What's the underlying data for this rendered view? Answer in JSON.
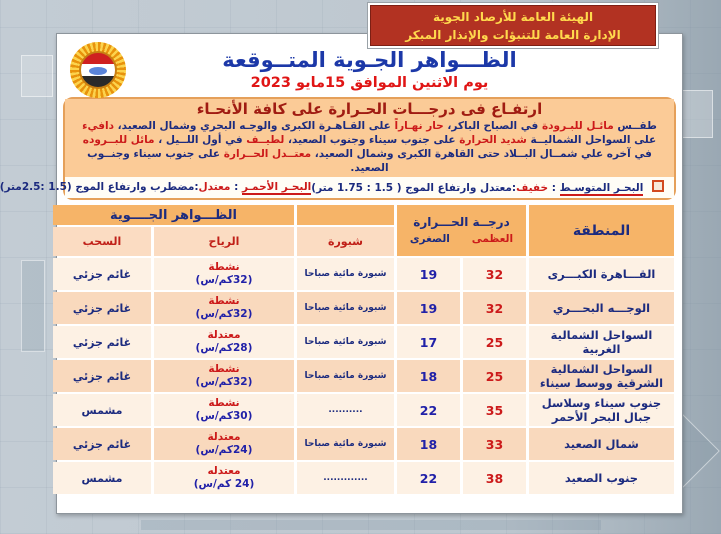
{
  "agency": {
    "line1": "الهيئة العامة للأرصاد الجوية",
    "line2": "الإدارة العامة للتنبؤات والإنذار المبكر"
  },
  "title": "الظـــواهر الجـوية المتــوقعة",
  "date_line": "يوم الاثنين الموافق 15مايو 2023",
  "banner": {
    "headline": "ارتفـاع فى درجـــات الحـرارة على كافة الأنحـاء",
    "paragraph": [
      {
        "text": "طقــس ",
        "red": false
      },
      {
        "text": "مائـل للبـرودة",
        "red": true
      },
      {
        "text": " في الصباح الباكر، ",
        "red": false
      },
      {
        "text": "حار نهـاراً",
        "red": true
      },
      {
        "text": " على القـاهـرة الكبرى والوجـه البحري وشمال الصعيد، ",
        "red": false
      },
      {
        "text": "دافيء",
        "red": true
      },
      {
        "text": " على السواحل الشماليــة ",
        "red": false
      },
      {
        "text": "شديد الحرارة",
        "red": true
      },
      {
        "text": " على جنوب سيناء وجنوب الصعيد، ",
        "red": false
      },
      {
        "text": "لطيــف",
        "red": true
      },
      {
        "text": " في أول اللــيل ، ",
        "red": false
      },
      {
        "text": "مائل للبــروده",
        "red": true
      },
      {
        "text": " في آخره علي شمــال البــلاد حتى القاهرة الكبرى وشمال الصعيد، ",
        "red": false
      },
      {
        "text": "معتــدل الحــرارة",
        "red": true
      },
      {
        "text": " على جنوب سيناء وجنــوب الصعيد.",
        "red": false
      }
    ]
  },
  "sea_line": {
    "med_name": "البحـر المتوسـط",
    "med_colon": " : ",
    "med_state": "خفيف",
    "med_rest": ":معتدل  وارتفاع الموج ( 1.5 : 1.75 متر)",
    "red_name": "البحـر الأحمـر",
    "red_colon": " : ",
    "red_state": "معتدل",
    "red_rest": ":مضطرب وارتفاع الموج (1.5 :2.5متر)"
  },
  "table": {
    "phenomena_header": "الظـــواهر الجــــوية",
    "temp_header": "درجــة الحـــرارة",
    "tmax_label": "العظمى",
    "tmin_label": "الصغرى",
    "region_label": "المنطقة",
    "fog_label": "شبورة",
    "wind_label": "الرياح",
    "clouds_label": "السحب",
    "rows": [
      {
        "region": "القـــاهرة الكبـــرى",
        "tmax": "32",
        "tmin": "19",
        "fog": "شبورة مائية صباحا",
        "wind_type": "نشطة",
        "wind_speed": "(32كم/س)",
        "clouds": "غائم جزئي"
      },
      {
        "region": "الوجـــه البحـــري",
        "tmax": "32",
        "tmin": "19",
        "fog": "شبورة مائية صباحا",
        "wind_type": "نشطة",
        "wind_speed": "(32كم/س)",
        "clouds": "غائم جزئي"
      },
      {
        "region": "السواحل الشمالية الغربية",
        "tmax": "25",
        "tmin": "17",
        "fog": "شبورة مائية صباحا",
        "wind_type": "معتدلة",
        "wind_speed": "(28كم/س)",
        "clouds": "غائم جزئي"
      },
      {
        "region": "السواحل الشمالية الشرقية ووسط سيناء",
        "tmax": "25",
        "tmin": "18",
        "fog": "شبورة مائية صباحا",
        "wind_type": "نشطة",
        "wind_speed": "(32كم/س)",
        "clouds": "غائم جزئي"
      },
      {
        "region": "جنوب سيناء وسلاسل جبال البحر الأحمر",
        "tmax": "35",
        "tmin": "22",
        "fog": "..........",
        "wind_type": "نشطة",
        "wind_speed": "(30كم/س)",
        "clouds": "مشمس"
      },
      {
        "region": "شمال الصعيد",
        "tmax": "33",
        "tmin": "18",
        "fog": "شبورة مائية صباحا",
        "wind_type": "معتدلة",
        "wind_speed": "(24كم/س)",
        "clouds": "غائم جزئي"
      },
      {
        "region": "جنوب الصعيد",
        "tmax": "38",
        "tmin": "22",
        "fog": ".............",
        "wind_type": "معتدله",
        "wind_speed": "(24 كم/س)",
        "clouds": "مشمس"
      }
    ]
  },
  "colors": {
    "agency_bg": "#b23222",
    "agency_text": "#ffd94d",
    "title_blue": "#1c38a8",
    "date_red": "#e01515",
    "banner_bg": "#fbcb97",
    "banner_headline": "#a01c12",
    "navy": "#1c2b7f",
    "red": "#cc1a1a",
    "header_orange": "#f6b468",
    "subheader_pink": "#fbdcc2",
    "row_light": "#fdf1e4",
    "row_pink": "#f9d9bd"
  }
}
